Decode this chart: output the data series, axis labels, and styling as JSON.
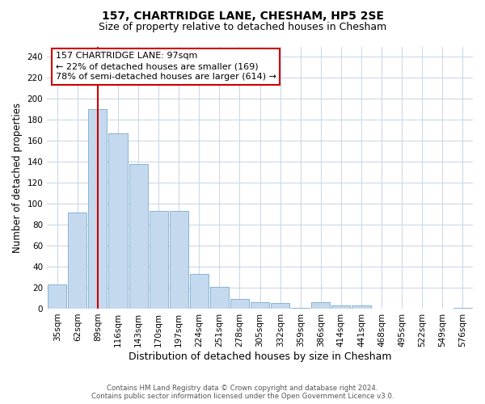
{
  "title": "157, CHARTRIDGE LANE, CHESHAM, HP5 2SE",
  "subtitle": "Size of property relative to detached houses in Chesham",
  "xlabel": "Distribution of detached houses by size in Chesham",
  "ylabel": "Number of detached properties",
  "footnote": "Contains HM Land Registry data © Crown copyright and database right 2024.\nContains public sector information licensed under the Open Government Licence v3.0.",
  "categories": [
    "35sqm",
    "62sqm",
    "89sqm",
    "116sqm",
    "143sqm",
    "170sqm",
    "197sqm",
    "224sqm",
    "251sqm",
    "278sqm",
    "305sqm",
    "332sqm",
    "359sqm",
    "386sqm",
    "414sqm",
    "441sqm",
    "468sqm",
    "495sqm",
    "522sqm",
    "549sqm",
    "576sqm"
  ],
  "values": [
    23,
    92,
    190,
    167,
    138,
    93,
    93,
    33,
    21,
    9,
    6,
    5,
    1,
    6,
    3,
    3,
    0,
    0,
    0,
    0,
    1
  ],
  "bar_color": "#c5d9ee",
  "bar_edgecolor": "#7aabcf",
  "redline_x": 2.0,
  "annotation_line1": "157 CHARTRIDGE LANE: 97sqm",
  "annotation_line2": "← 22% of detached houses are smaller (169)",
  "annotation_line3": "78% of semi-detached houses are larger (614) →",
  "annotation_box_edgecolor": "#cc0000",
  "ylim": [
    0,
    250
  ],
  "yticks": [
    0,
    20,
    40,
    60,
    80,
    100,
    120,
    140,
    160,
    180,
    200,
    220,
    240
  ],
  "background_color": "#ffffff",
  "grid_color": "#c8d4e8",
  "title_fontsize": 10,
  "subtitle_fontsize": 9,
  "ylabel_fontsize": 8.5,
  "xlabel_fontsize": 9,
  "tick_fontsize": 7.5,
  "annot_fontsize": 8,
  "footnote_fontsize": 6.2
}
